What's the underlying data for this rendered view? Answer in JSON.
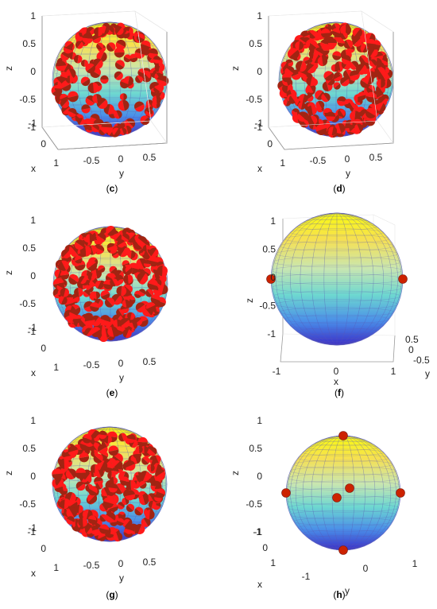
{
  "chart_data": [
    {
      "panel": "c",
      "caption_prefix": "(",
      "caption_letter": "c",
      "caption_suffix": ")",
      "type": "scatter",
      "surface": "sphere",
      "colormap": "parula",
      "view": "x-toward-viewer-left",
      "xlabel": "x",
      "ylabel": "y",
      "zlabel": "z",
      "x_ticks": [
        "-1",
        "0",
        "1"
      ],
      "y_ticks": [
        "-0.5",
        "0",
        "0.5"
      ],
      "z_ticks": [
        "1",
        "0.5",
        "0",
        "-0.5",
        "-1"
      ],
      "xlim": [
        -1,
        1
      ],
      "ylim": [
        -1,
        1
      ],
      "zlim": [
        -1,
        1
      ],
      "grid": true,
      "marker_color": "#ff0000",
      "marker_count_estimate": 160,
      "density": "edge-heavy"
    },
    {
      "panel": "d",
      "caption_prefix": "(",
      "caption_letter": "d",
      "caption_suffix": ")",
      "type": "scatter",
      "surface": "sphere",
      "colormap": "parula",
      "view": "x-toward-viewer-left",
      "xlabel": "x",
      "ylabel": "y",
      "zlabel": "z",
      "x_ticks": [
        "-1",
        "0",
        "1"
      ],
      "y_ticks": [
        "-0.5",
        "0",
        "0.5"
      ],
      "z_ticks": [
        "1",
        "0.5",
        "0",
        "-0.5",
        "-1"
      ],
      "xlim": [
        -1,
        1
      ],
      "ylim": [
        -1,
        1
      ],
      "zlim": [
        -1,
        1
      ],
      "grid": true,
      "marker_color": "#ff0000",
      "marker_count_estimate": 260,
      "density": "dense"
    },
    {
      "panel": "e",
      "caption_prefix": "(",
      "caption_letter": "e",
      "caption_suffix": ")",
      "type": "scatter",
      "surface": "sphere",
      "colormap": "parula",
      "view": "x-toward-viewer-left",
      "xlabel": "x",
      "ylabel": "y",
      "zlabel": "z",
      "x_ticks": [
        "-1",
        "0",
        "1"
      ],
      "y_ticks": [
        "-0.5",
        "0",
        "0.5"
      ],
      "z_ticks": [
        "1",
        "0.5",
        "0",
        "-0.5",
        "-1"
      ],
      "xlim": [
        -1,
        1
      ],
      "ylim": [
        -1,
        1
      ],
      "zlim": [
        -1,
        1
      ],
      "grid": true,
      "marker_color": "#ff0000",
      "marker_count_estimate": 250,
      "density": "dense"
    },
    {
      "panel": "f",
      "caption_prefix": "(",
      "caption_letter": "f",
      "caption_suffix": ")",
      "type": "scatter",
      "surface": "sphere",
      "colormap": "parula",
      "view": "x-horizontal",
      "xlabel": "x",
      "ylabel": "y",
      "zlabel": "z",
      "x_ticks": [
        "-1",
        "0",
        "1"
      ],
      "y_ticks": [
        "0.5",
        "0",
        "-0.5"
      ],
      "z_ticks": [
        "1",
        "0.5",
        "0",
        "-0.5",
        "-1"
      ],
      "xlim": [
        -1,
        1
      ],
      "ylim": [
        -1,
        1
      ],
      "zlim": [
        -1,
        1
      ],
      "grid": true,
      "marker_color": "#cc2200",
      "marker_count_estimate": 2,
      "density": "sparse",
      "points": [
        {
          "x": -1,
          "y": 0,
          "z": 0
        },
        {
          "x": 1,
          "y": 0,
          "z": 0
        }
      ]
    },
    {
      "panel": "g",
      "caption_prefix": "(",
      "caption_letter": "g",
      "caption_suffix": ")",
      "type": "scatter",
      "surface": "sphere",
      "colormap": "parula",
      "view": "x-toward-viewer-left",
      "xlabel": "x",
      "ylabel": "y",
      "zlabel": "z",
      "x_ticks": [
        "-1",
        "0",
        "1"
      ],
      "y_ticks": [
        "-0.5",
        "0",
        "0.5"
      ],
      "z_ticks": [
        "1",
        "0.5",
        "0",
        "-0.5",
        "-1"
      ],
      "xlim": [
        -1,
        1
      ],
      "ylim": [
        -1,
        1
      ],
      "zlim": [
        -1,
        1
      ],
      "grid": true,
      "marker_color": "#ff0000",
      "marker_count_estimate": 240,
      "density": "dense"
    },
    {
      "panel": "h",
      "caption_prefix": "(",
      "caption_letter": "h",
      "caption_suffix": ")",
      "type": "scatter",
      "surface": "sphere",
      "colormap": "parula",
      "view": "x-toward-viewer-left",
      "xlabel": "x",
      "ylabel": "y",
      "zlabel": "z",
      "x_ticks": [
        "-1",
        "0",
        "1"
      ],
      "y_ticks": [
        "-1",
        "0",
        "1"
      ],
      "z_ticks": [
        "1",
        "0.5",
        "0",
        "-0.5",
        "-1"
      ],
      "xlim": [
        -1,
        1
      ],
      "ylim": [
        -1,
        1
      ],
      "zlim": [
        -1,
        1
      ],
      "grid": true,
      "marker_color": "#cc2200",
      "marker_count_estimate": 6,
      "density": "sparse",
      "points": [
        {
          "x": 0,
          "y": 0,
          "z": 1
        },
        {
          "x": 0,
          "y": 0,
          "z": -1
        },
        {
          "x": 0,
          "y": -1,
          "z": 0
        },
        {
          "x": 0,
          "y": 1,
          "z": 0
        },
        {
          "x": 1,
          "y": 0,
          "z": 0
        },
        {
          "x": -1,
          "y": 0,
          "z": 0
        }
      ]
    }
  ]
}
